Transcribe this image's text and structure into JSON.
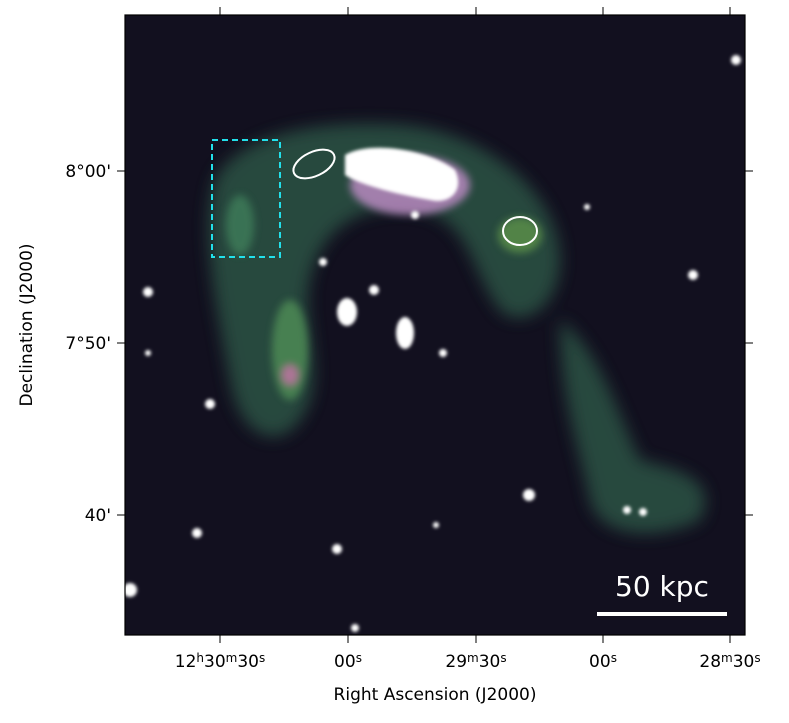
{
  "axes": {
    "x_label": "Right Ascension (J2000)",
    "y_label": "Declination (J2000)",
    "x_ticks": [
      [
        "12",
        "h",
        "30",
        "m",
        "30",
        "s"
      ],
      [
        "00",
        "s"
      ],
      [
        "29",
        "m",
        "30",
        "s"
      ],
      [
        "00",
        "s"
      ],
      [
        "28",
        "m",
        "30",
        "s"
      ]
    ],
    "y_ticks": [
      "8°00'",
      "7°50'",
      "40'"
    ]
  },
  "scale_bar": {
    "label": "50 kpc"
  }
}
